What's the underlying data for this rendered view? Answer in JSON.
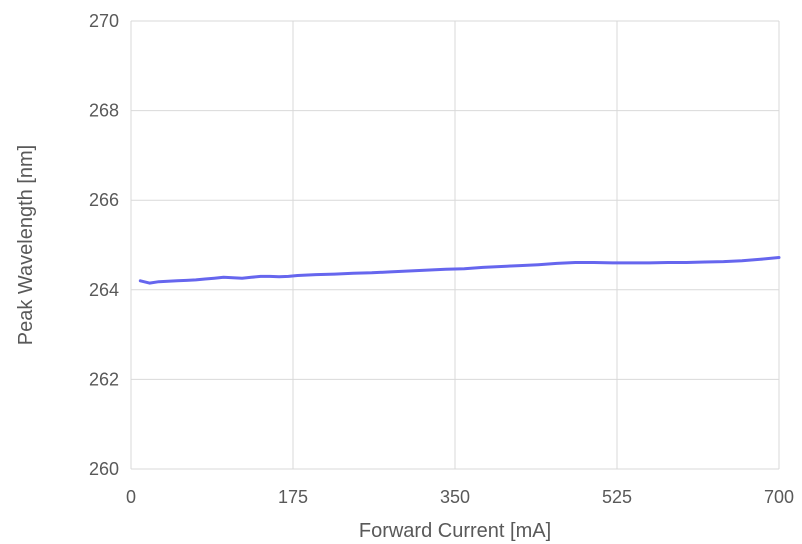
{
  "chart_data": {
    "type": "line",
    "xlabel": "Forward Current [mA]",
    "ylabel": "Peak Wavelength [nm]",
    "xlim": [
      0,
      700
    ],
    "ylim": [
      260,
      270
    ],
    "xticks": [
      0,
      175,
      350,
      525,
      700
    ],
    "yticks": [
      260,
      262,
      264,
      266,
      268,
      270
    ],
    "grid": true,
    "line_color": "#6666ee",
    "grid_color": "#d9d9d9",
    "series": [
      {
        "x": [
          10,
          20,
          30,
          40,
          50,
          60,
          70,
          80,
          90,
          100,
          110,
          120,
          130,
          140,
          150,
          160,
          170,
          180,
          200,
          220,
          240,
          260,
          280,
          300,
          320,
          340,
          360,
          380,
          400,
          420,
          440,
          460,
          480,
          500,
          520,
          540,
          560,
          580,
          600,
          620,
          640,
          660,
          680,
          700
        ],
        "y": [
          264.2,
          264.15,
          264.18,
          264.19,
          264.2,
          264.21,
          264.22,
          264.24,
          264.26,
          264.28,
          264.27,
          264.26,
          264.28,
          264.3,
          264.3,
          264.29,
          264.3,
          264.32,
          264.34,
          264.35,
          264.37,
          264.38,
          264.4,
          264.42,
          264.44,
          264.46,
          264.47,
          264.5,
          264.52,
          264.54,
          264.56,
          264.59,
          264.61,
          264.61,
          264.6,
          264.6,
          264.6,
          264.61,
          264.61,
          264.62,
          264.63,
          264.65,
          264.68,
          264.72
        ]
      }
    ]
  }
}
